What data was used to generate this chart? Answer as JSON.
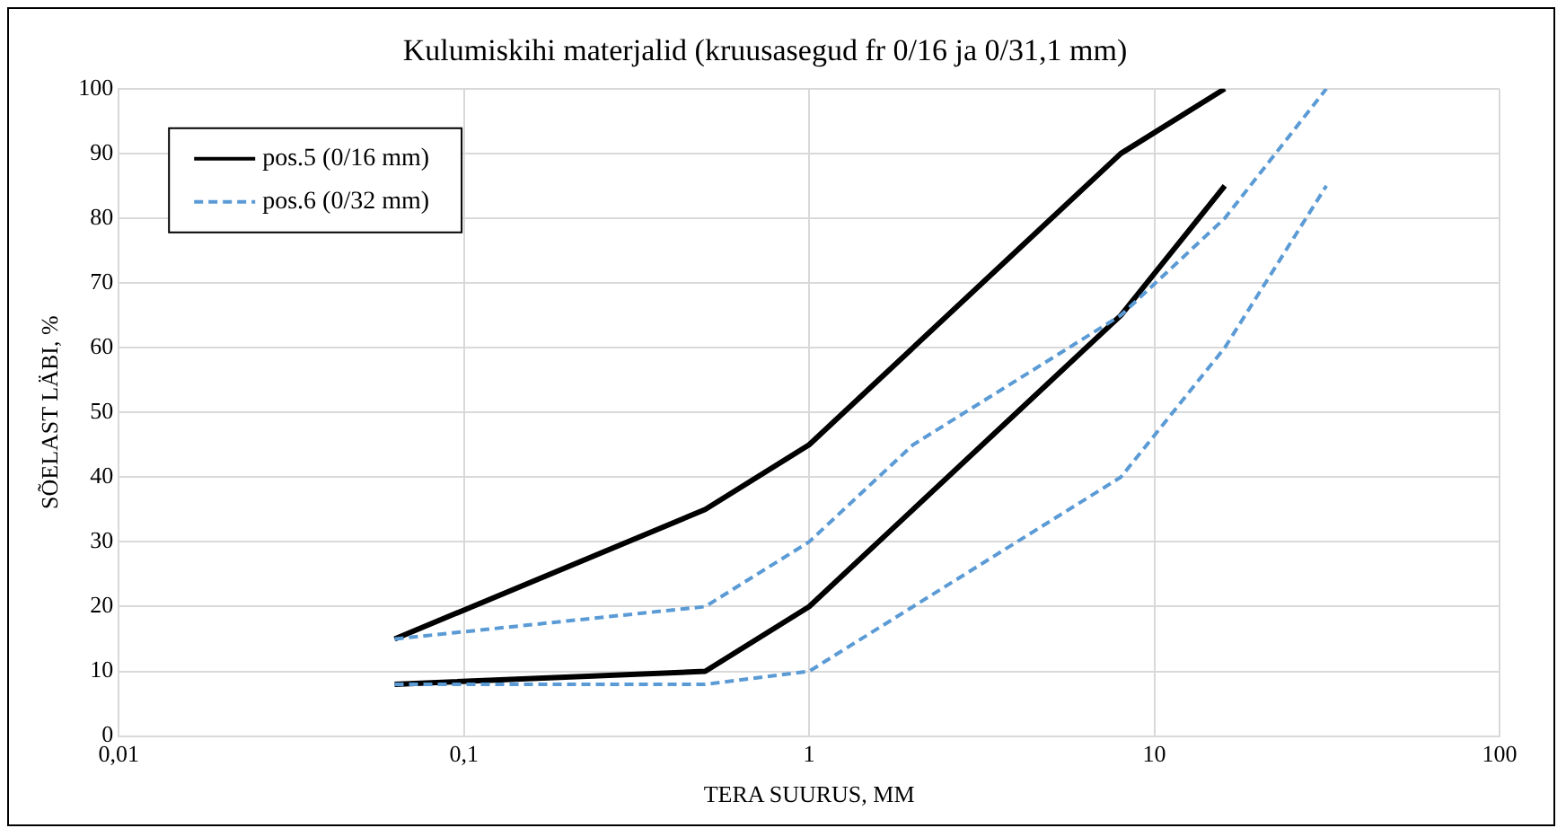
{
  "chart_data": {
    "type": "line",
    "title": "Kulumiskihi materjalid (kruusasegud fr 0/16 ja 0/31,1 mm)",
    "xlabel": "TERA SUURUS, MM",
    "ylabel": "SÕELAST LÄBI, %",
    "log": "x",
    "xlim": [
      0.01,
      100
    ],
    "xticks": [
      {
        "value": 0.01,
        "label": "0,01"
      },
      {
        "value": 0.1,
        "label": "0,1"
      },
      1,
      10,
      100
    ],
    "ylim": [
      0,
      100
    ],
    "yticks": [
      0,
      10,
      20,
      30,
      40,
      50,
      60,
      70,
      80,
      90,
      100
    ],
    "grid": true,
    "legend": "top left",
    "marker": "none",
    "series": [
      {
        "name": "pos.5 (0/16 mm)",
        "color": "#000000",
        "line_style": "solid",
        "x": [
          0.063,
          0.5,
          1,
          2,
          4,
          8,
          16
        ],
        "values": [
          15,
          35,
          45,
          60,
          75,
          90,
          100
        ]
      },
      {
        "color": "#000000",
        "line_style": "solid",
        "x": [
          0.063,
          0.5,
          1,
          2,
          4,
          8,
          16
        ],
        "values": [
          8,
          10,
          20,
          35,
          50,
          65,
          85
        ]
      },
      {
        "name": "pos.6 (0/32 mm)",
        "color": "#5b9bd5",
        "line_style": "dashed",
        "x": [
          0.063,
          0.5,
          1,
          2,
          4,
          8,
          16,
          31.5
        ],
        "values": [
          15,
          20,
          30,
          45,
          55,
          65,
          80,
          100
        ]
      },
      {
        "color": "#5b9bd5",
        "line_style": "dashed",
        "x": [
          0.063,
          0.5,
          1,
          2,
          4,
          8,
          16,
          31.5
        ],
        "values": [
          8,
          8,
          10,
          20,
          30,
          40,
          60,
          85
        ]
      }
    ]
  }
}
